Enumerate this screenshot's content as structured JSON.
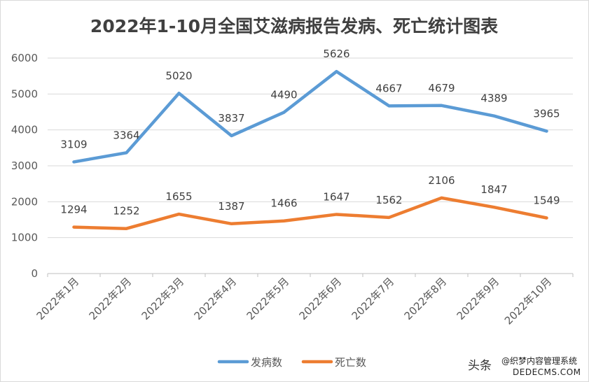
{
  "chart_data": {
    "type": "line",
    "title": "2022年1-10月全国艾滋病报告发病、死亡统计图表",
    "categories": [
      "2022年1月",
      "2022年2月",
      "2022年3月",
      "2022年4月",
      "2022年5月",
      "2022年6月",
      "2022年7月",
      "2022年8月",
      "2022年9月",
      "2022年10月"
    ],
    "series": [
      {
        "name": "发病数",
        "color": "#5b9bd5",
        "values": [
          3109,
          3364,
          5020,
          3837,
          4490,
          5626,
          4667,
          4679,
          4389,
          3965
        ]
      },
      {
        "name": "死亡数",
        "color": "#ed7d31",
        "values": [
          1294,
          1252,
          1655,
          1387,
          1466,
          1647,
          1562,
          2106,
          1847,
          1549
        ]
      }
    ],
    "yticks": [
      0,
      1000,
      2000,
      3000,
      4000,
      5000,
      6000
    ],
    "ylim": [
      0,
      6000
    ],
    "grid": true,
    "legend": "bottom",
    "xlabel": "",
    "ylabel": ""
  },
  "watermark": {
    "brand": "头条",
    "handle": "@织梦内容管理系统",
    "site": "DEDECMS.COM"
  }
}
